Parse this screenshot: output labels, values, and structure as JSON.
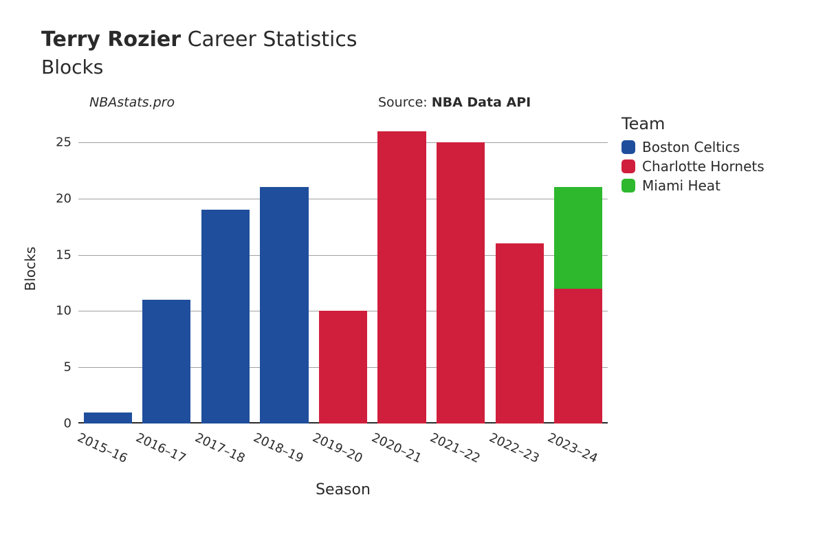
{
  "title": {
    "player": "Terry Rozier",
    "rest": "Career Statistics",
    "subtitle": "Blocks",
    "title_fontsize": 30,
    "subtitle_fontsize": 28
  },
  "watermark": {
    "text": "NBAstats.pro",
    "fontsize": 19
  },
  "source": {
    "label": "Source: ",
    "value": "NBA Data API",
    "fontsize": 19
  },
  "chart": {
    "type": "bar-stacked",
    "background_color": "#ffffff",
    "grid_color": "#a0a0a0",
    "text_color": "#2a2a2a",
    "x_label": "Season",
    "y_label": "Blocks",
    "x_label_fontsize": 22,
    "y_label_fontsize": 20,
    "tick_fontsize": 18,
    "ylim": [
      0,
      27.5
    ],
    "yticks": [
      0,
      5,
      10,
      15,
      20,
      25
    ],
    "bar_width": 0.82,
    "categories": [
      "2015–16",
      "2016–17",
      "2017–18",
      "2018–19",
      "2019–20",
      "2020–21",
      "2021–22",
      "2022–23",
      "2023–24"
    ],
    "stacks": [
      [
        {
          "team": "Boston Celtics",
          "value": 1
        }
      ],
      [
        {
          "team": "Boston Celtics",
          "value": 11
        }
      ],
      [
        {
          "team": "Boston Celtics",
          "value": 19
        }
      ],
      [
        {
          "team": "Boston Celtics",
          "value": 21
        }
      ],
      [
        {
          "team": "Charlotte Hornets",
          "value": 10
        }
      ],
      [
        {
          "team": "Charlotte Hornets",
          "value": 26
        }
      ],
      [
        {
          "team": "Charlotte Hornets",
          "value": 25
        }
      ],
      [
        {
          "team": "Charlotte Hornets",
          "value": 16
        }
      ],
      [
        {
          "team": "Charlotte Hornets",
          "value": 12
        },
        {
          "team": "Miami Heat",
          "value": 9
        }
      ]
    ]
  },
  "legend": {
    "title": "Team",
    "title_fontsize": 24,
    "item_fontsize": 20,
    "items": [
      {
        "label": "Boston Celtics",
        "color": "#1f4e9c"
      },
      {
        "label": "Charlotte Hornets",
        "color": "#d01f3c"
      },
      {
        "label": "Miami Heat",
        "color": "#2db82d"
      }
    ]
  },
  "team_colors": {
    "Boston Celtics": "#1f4e9c",
    "Charlotte Hornets": "#d01f3c",
    "Miami Heat": "#2db82d"
  }
}
